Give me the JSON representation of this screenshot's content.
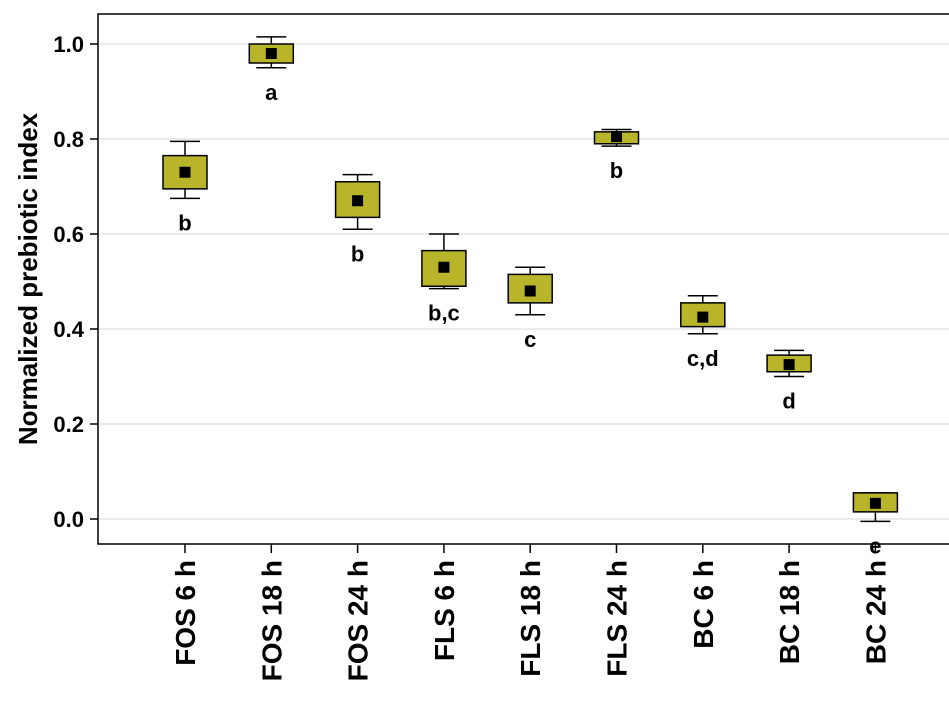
{
  "chart_data": {
    "type": "box",
    "title": "",
    "xlabel": "",
    "ylabel": "Normalized prebiotic index",
    "ylim": [
      -0.05,
      1.08
    ],
    "yticks": [
      "0.0",
      "0.2",
      "0.4",
      "0.6",
      "0.8",
      "1.0"
    ],
    "grid": true,
    "colors": {
      "box_fill": "#b8b52a",
      "box_stroke": "#000000",
      "mean_marker": "#000000"
    },
    "categories": [
      "FOS 6 h",
      "FOS 18 h",
      "FOS 24 h",
      "FLS 6 h",
      "FLS 18 h",
      "FLS 24 h",
      "BC 6 h",
      "BC 18 h",
      "BC 24 h"
    ],
    "series": [
      {
        "mean": 0.73,
        "box_low": 0.695,
        "box_high": 0.765,
        "whisker_low": 0.675,
        "whisker_high": 0.795,
        "sig": "b"
      },
      {
        "mean": 0.98,
        "box_low": 0.96,
        "box_high": 1.0,
        "whisker_low": 0.95,
        "whisker_high": 1.015,
        "sig": "a"
      },
      {
        "mean": 0.67,
        "box_low": 0.635,
        "box_high": 0.71,
        "whisker_low": 0.61,
        "whisker_high": 0.725,
        "sig": "b"
      },
      {
        "mean": 0.53,
        "box_low": 0.49,
        "box_high": 0.565,
        "whisker_low": 0.485,
        "whisker_high": 0.6,
        "sig": "b,c"
      },
      {
        "mean": 0.48,
        "box_low": 0.455,
        "box_high": 0.515,
        "whisker_low": 0.43,
        "whisker_high": 0.53,
        "sig": "c"
      },
      {
        "mean": 0.805,
        "box_low": 0.79,
        "box_high": 0.815,
        "whisker_low": 0.785,
        "whisker_high": 0.82,
        "sig": "b"
      },
      {
        "mean": 0.425,
        "box_low": 0.405,
        "box_high": 0.455,
        "whisker_low": 0.39,
        "whisker_high": 0.47,
        "sig": "c,d"
      },
      {
        "mean": 0.325,
        "box_low": 0.31,
        "box_high": 0.345,
        "whisker_low": 0.3,
        "whisker_high": 0.355,
        "sig": "d"
      },
      {
        "mean": 0.033,
        "box_low": 0.015,
        "box_high": 0.055,
        "whisker_low": -0.005,
        "whisker_high": 0.055,
        "sig": "e"
      }
    ]
  }
}
